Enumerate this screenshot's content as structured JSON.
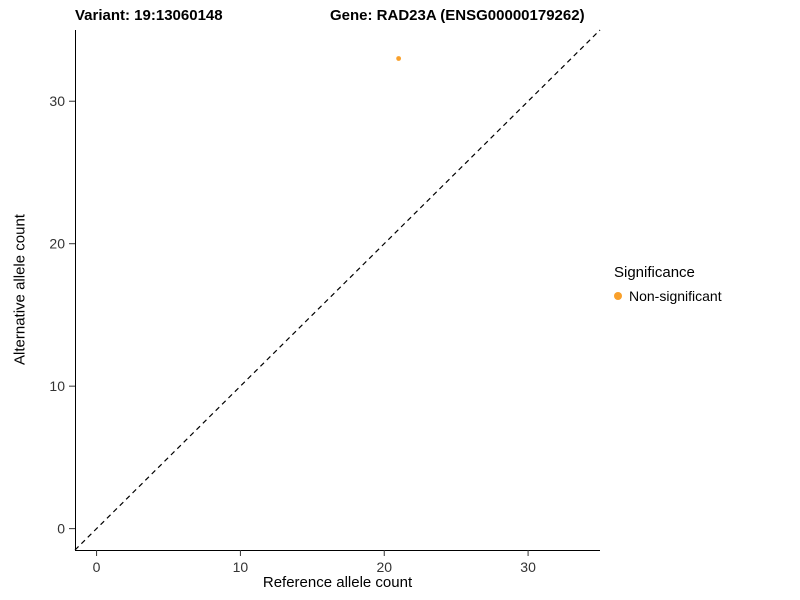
{
  "titles": {
    "variant": "Variant: 19:13060148",
    "gene": "Gene: RAD23A (ENSG00000179262)"
  },
  "legend": {
    "title": "Significance",
    "items": [
      {
        "label": "Non-significant",
        "color": "#F9A02B"
      }
    ]
  },
  "chart_data": {
    "type": "scatter",
    "title": "Variant: 19:13060148 / Gene: RAD23A (ENSG00000179262)",
    "xlabel": "Reference allele count",
    "ylabel": "Alternative allele count",
    "xlim": [
      -1.5,
      35
    ],
    "ylim": [
      -1.5,
      35
    ],
    "x_ticks": [
      0,
      10,
      20,
      30
    ],
    "y_ticks": [
      0,
      10,
      20,
      30
    ],
    "grid": false,
    "legend_position": "right",
    "series": [
      {
        "name": "Non-significant",
        "color": "#F9A02B",
        "points": [
          {
            "x": 21,
            "y": 33
          }
        ]
      }
    ],
    "reference_line": {
      "type": "identity",
      "line_style": "dashed",
      "color": "#000000",
      "from": [
        -1.5,
        -1.5
      ],
      "to": [
        35,
        35
      ]
    }
  }
}
